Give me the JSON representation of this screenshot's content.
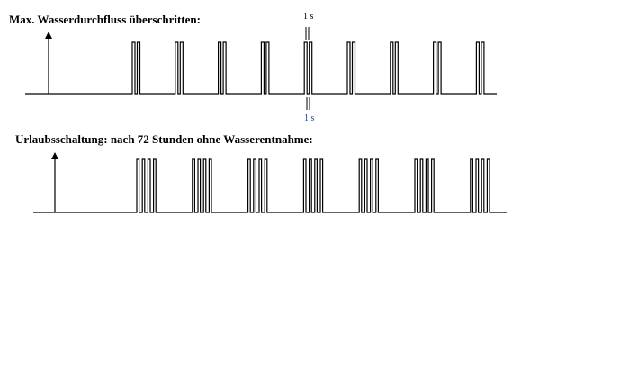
{
  "diagram1": {
    "title": "Max. Wasserdurchfluss überschritten:",
    "pulses_per_group": 2,
    "groups": 9,
    "annotation_top": "1 s",
    "annotation_bottom": "1 s"
  },
  "diagram2": {
    "title": "Urlaubsschaltung: nach 72 Stunden ohne Wasserentnahme:",
    "pulses_per_group": 4,
    "groups": 7
  },
  "colors": {
    "line": "#000000",
    "annotation_bottom": "#1f3f7f"
  }
}
